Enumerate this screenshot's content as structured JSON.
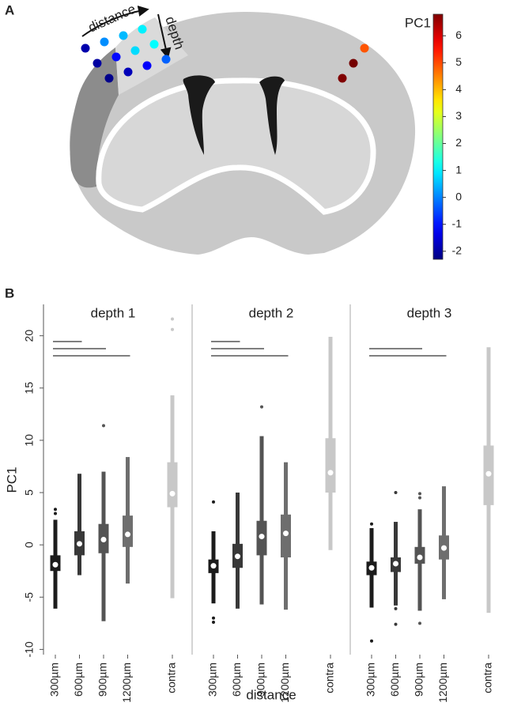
{
  "chart_data": [
    {
      "type": "dotmap",
      "label": "A",
      "distance_label": "distance",
      "depth_label": "depth",
      "colorbar": {
        "title": "PC1",
        "clim": [
          -2.3,
          6.8
        ],
        "ticks": [
          -2,
          -1,
          0,
          1,
          2,
          3,
          4,
          5,
          6
        ],
        "colormap": "jet"
      },
      "ipsi": [
        [
          -1.9,
          0.1,
          0.5,
          1.0
        ],
        [
          -2.0,
          -1.1,
          0.8,
          1.1
        ],
        [
          -2.2,
          -1.8,
          -1.2,
          -0.3
        ]
      ],
      "contra": [
        4.9,
        6.9,
        6.8
      ]
    },
    {
      "type": "box",
      "label": "B",
      "ylabel": "PC1",
      "xlabel": "distance",
      "categories": [
        "300µm",
        "600µm",
        "900µm",
        "1200µm",
        "contra"
      ],
      "colors": [
        "#1c1c1c",
        "#383838",
        "#545454",
        "#6e6e6e",
        "#c8c8c8"
      ],
      "ylim": [
        -10.5,
        23
      ],
      "yticks": [
        -10,
        -5,
        0,
        5,
        10,
        15,
        20
      ],
      "facets": [
        {
          "title": "depth 1",
          "comparisons": [
            [
              "300µm",
              "600µm"
            ],
            [
              "300µm",
              "900µm"
            ],
            [
              "300µm",
              "1200µm"
            ]
          ],
          "boxes": [
            {
              "whislo": -6.1,
              "q1": -2.5,
              "med": -1.9,
              "q3": -1.0,
              "whishi": 2.4,
              "outliers": [
                3.4,
                3.0
              ]
            },
            {
              "whislo": -2.9,
              "q1": -1.0,
              "med": 0.1,
              "q3": 1.3,
              "whishi": 6.8,
              "outliers": []
            },
            {
              "whislo": -7.3,
              "q1": -0.8,
              "med": 0.5,
              "q3": 2.0,
              "whishi": 7.0,
              "outliers": [
                11.4
              ]
            },
            {
              "whislo": -3.7,
              "q1": -0.2,
              "med": 1.0,
              "q3": 2.8,
              "whishi": 8.4,
              "outliers": []
            },
            {
              "whislo": -5.1,
              "q1": 3.6,
              "med": 4.9,
              "q3": 7.9,
              "whishi": 14.3,
              "outliers": [
                20.6,
                21.6
              ]
            }
          ]
        },
        {
          "title": "depth 2",
          "comparisons": [
            [
              "300µm",
              "600µm"
            ],
            [
              "300µm",
              "900µm"
            ],
            [
              "300µm",
              "1200µm"
            ]
          ],
          "boxes": [
            {
              "whislo": -5.6,
              "q1": -2.7,
              "med": -2.0,
              "q3": -1.4,
              "whishi": 1.3,
              "outliers": [
                4.1,
                -7.0,
                -7.4
              ]
            },
            {
              "whislo": -6.1,
              "q1": -2.2,
              "med": -1.1,
              "q3": 0.1,
              "whishi": 5.0,
              "outliers": []
            },
            {
              "whislo": -5.7,
              "q1": -1.0,
              "med": 0.8,
              "q3": 2.3,
              "whishi": 10.4,
              "outliers": [
                13.2
              ]
            },
            {
              "whislo": -6.2,
              "q1": -1.2,
              "med": 1.1,
              "q3": 2.9,
              "whishi": 7.9,
              "outliers": []
            },
            {
              "whislo": -0.5,
              "q1": 5.0,
              "med": 6.9,
              "q3": 10.2,
              "whishi": 19.9,
              "outliers": []
            }
          ]
        },
        {
          "title": "depth 3",
          "comparisons": [
            [
              "300µm",
              "900µm"
            ],
            [
              "300µm",
              "1200µm"
            ]
          ],
          "boxes": [
            {
              "whislo": -6.0,
              "q1": -2.9,
              "med": -2.2,
              "q3": -1.6,
              "whishi": 1.6,
              "outliers": [
                2.0,
                -9.2
              ]
            },
            {
              "whislo": -5.8,
              "q1": -2.6,
              "med": -1.8,
              "q3": -1.2,
              "whishi": 2.2,
              "outliers": [
                5.0,
                -6.1,
                -7.6
              ]
            },
            {
              "whislo": -6.3,
              "q1": -1.8,
              "med": -1.2,
              "q3": -0.2,
              "whishi": 3.4,
              "outliers": [
                4.9,
                4.5,
                -7.5
              ]
            },
            {
              "whislo": -5.2,
              "q1": -1.4,
              "med": -0.3,
              "q3": 0.9,
              "whishi": 5.6,
              "outliers": []
            },
            {
              "whislo": -6.5,
              "q1": 3.8,
              "med": 6.8,
              "q3": 9.5,
              "whishi": 18.9,
              "outliers": []
            }
          ]
        }
      ]
    }
  ]
}
